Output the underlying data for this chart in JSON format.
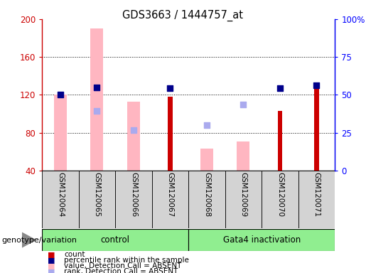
{
  "title": "GDS3663 / 1444757_at",
  "samples": [
    "GSM120064",
    "GSM120065",
    "GSM120066",
    "GSM120067",
    "GSM120068",
    "GSM120069",
    "GSM120070",
    "GSM120071"
  ],
  "count_values": [
    null,
    null,
    null,
    118,
    null,
    null,
    103,
    130
  ],
  "rank_values": [
    120,
    128,
    null,
    127,
    null,
    null,
    127,
    130
  ],
  "absent_value_bars": [
    120,
    190,
    113,
    null,
    63,
    71,
    null,
    null
  ],
  "absent_rank_squares": [
    null,
    103,
    83,
    null,
    88,
    110,
    null,
    null
  ],
  "ylim": [
    40,
    200
  ],
  "y2lim": [
    0,
    100
  ],
  "yticks": [
    40,
    80,
    120,
    160,
    200
  ],
  "y2ticks": [
    0,
    25,
    50,
    75,
    100
  ],
  "y2ticklabels": [
    "0",
    "25",
    "50",
    "75",
    "100%"
  ],
  "bar_bottom": 40,
  "count_color": "#cc0000",
  "rank_color": "#00008b",
  "absent_value_color": "#ffb6c1",
  "absent_rank_color": "#aaaaee",
  "legend_items": [
    {
      "label": "count",
      "color": "#cc0000"
    },
    {
      "label": "percentile rank within the sample",
      "color": "#00008b"
    },
    {
      "label": "value, Detection Call = ABSENT",
      "color": "#ffb6c1"
    },
    {
      "label": "rank, Detection Call = ABSENT",
      "color": "#aaaaee"
    }
  ],
  "group_label": "genotype/variation",
  "tick_area_color": "#d3d3d3",
  "group_boundaries": [
    [
      0,
      4,
      "control"
    ],
    [
      4,
      8,
      "Gata4 inactivation"
    ]
  ],
  "group_color": "#90ee90"
}
